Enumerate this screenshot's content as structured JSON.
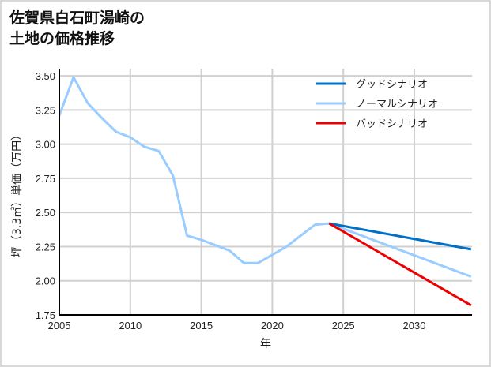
{
  "chart_data": {
    "type": "line",
    "title": "佐賀県白石町湯崎の土地の価格推移",
    "title_lines": [
      "佐賀県白石町湯崎の",
      "土地の価格推移"
    ],
    "xlabel": "年",
    "ylabel": "坪（3.3㎡）単価（万円）",
    "xlim": [
      2005,
      2034
    ],
    "ylim": [
      1.75,
      3.55
    ],
    "x_ticks": [
      "2005",
      "2010",
      "2015",
      "2020",
      "2025",
      "2030"
    ],
    "y_ticks": [
      "1.75",
      "2.00",
      "2.25",
      "2.50",
      "2.75",
      "3.00",
      "3.25",
      "3.50"
    ],
    "grid": true,
    "legend_position": "upper right",
    "series": [
      {
        "name": "グッドシナリオ",
        "color": "#0070c8",
        "x": [
          2024,
          2034
        ],
        "values": [
          2.42,
          2.23
        ]
      },
      {
        "name": "ノーマルシナリオ",
        "color": "#99ccff",
        "x": [
          2005,
          2006,
          2007,
          2008,
          2009,
          2010,
          2011,
          2012,
          2013,
          2014,
          2015,
          2016,
          2017,
          2018,
          2019,
          2020,
          2021,
          2022,
          2023,
          2024,
          2034
        ],
        "values": [
          3.21,
          3.49,
          3.3,
          3.19,
          3.09,
          3.05,
          2.98,
          2.95,
          2.77,
          2.33,
          2.3,
          2.26,
          2.22,
          2.13,
          2.13,
          2.19,
          2.25,
          2.33,
          2.41,
          2.42,
          2.03
        ]
      },
      {
        "name": "バッドシナリオ",
        "color": "#ee0000",
        "x": [
          2024,
          2034
        ],
        "values": [
          2.42,
          1.82
        ]
      }
    ]
  }
}
